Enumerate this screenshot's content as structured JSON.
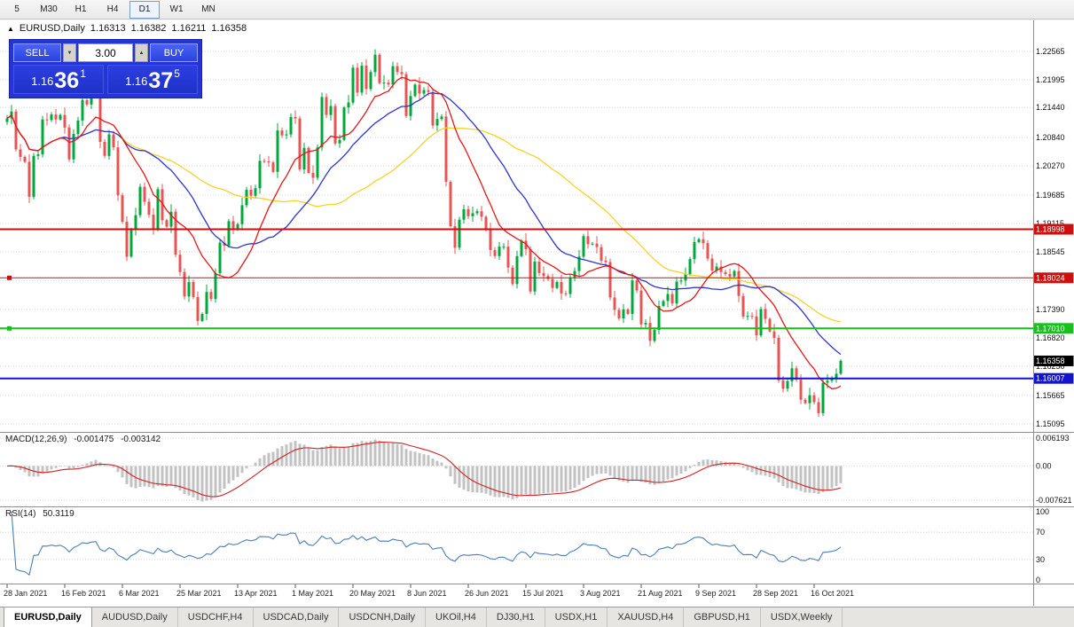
{
  "toolbar": {
    "timeframes": [
      {
        "label": "5",
        "active": false
      },
      {
        "label": "M30",
        "active": false
      },
      {
        "label": "H1",
        "active": false
      },
      {
        "label": "H4",
        "active": false
      },
      {
        "label": "D1",
        "active": true
      },
      {
        "label": "W1",
        "active": false
      },
      {
        "label": "MN",
        "active": false
      }
    ]
  },
  "chart_header": {
    "collapse_icon": "▲",
    "symbol": "EURUSD,Daily",
    "open": "1.16313",
    "high": "1.16382",
    "low": "1.16211",
    "close": "1.16358"
  },
  "one_click": {
    "sell_label": "SELL",
    "buy_label": "BUY",
    "volume": "3.00",
    "down_icon": "▼",
    "up_icon": "▲",
    "bid_small": "1.16",
    "bid_big": "36",
    "bid_sup": "1",
    "ask_small": "1.16",
    "ask_big": "37",
    "ask_sup": "5"
  },
  "indicators": {
    "macd_label": "MACD(12,26,9)",
    "macd_value1": "-0.001475",
    "macd_value2": "-0.003142",
    "rsi_label": "RSI(14)",
    "rsi_value": "50.3119"
  },
  "tabs": [
    {
      "label": "EURUSD,Daily",
      "active": true
    },
    {
      "label": "AUDUSD,Daily",
      "active": false
    },
    {
      "label": "USDCHF,H4",
      "active": false
    },
    {
      "label": "USDCAD,Daily",
      "active": false
    },
    {
      "label": "USDCNH,Daily",
      "active": false
    },
    {
      "label": "UKOil,H4",
      "active": false
    },
    {
      "label": "DJ30,H1",
      "active": false
    },
    {
      "label": "USDX,H1",
      "active": false
    },
    {
      "label": "XAUUSD,H4",
      "active": false
    },
    {
      "label": "GBPUSD,H1",
      "active": false
    },
    {
      "label": "USDX,Weekly",
      "active": false
    }
  ],
  "chart_data": {
    "type": "candlestick",
    "symbol": "EURUSD",
    "timeframe": "Daily",
    "up_color": "#00a83c",
    "down_color": "#e65454",
    "first_open": 1.2115,
    "wick_pattern": [
      0.0012,
      0.0022,
      0.0008,
      0.0018,
      0.0005,
      0.0025,
      0.001,
      0.0015
    ],
    "closes": [
      1.2122,
      1.2136,
      1.206,
      1.2045,
      1.2035,
      1.1965,
      1.2047,
      1.205,
      1.212,
      1.2119,
      1.213,
      1.212,
      1.2129,
      1.2104,
      1.204,
      1.2091,
      1.2118,
      1.2159,
      1.215,
      1.2168,
      1.2175,
      1.2075,
      1.2047,
      1.209,
      1.2064,
      1.1968,
      1.1915,
      1.1845,
      1.19,
      1.1928,
      1.1985,
      1.1955,
      1.1929,
      1.19,
      1.198,
      1.1918,
      1.1905,
      1.1935,
      1.1849,
      1.1814,
      1.1765,
      1.1794,
      1.1764,
      1.1716,
      1.173,
      1.1774,
      1.176,
      1.1812,
      1.1873,
      1.1867,
      1.1916,
      1.1899,
      1.191,
      1.1948,
      1.1979,
      1.1967,
      1.1982,
      1.2037,
      1.2036,
      1.2034,
      1.2015,
      1.2098,
      1.2088,
      1.209,
      1.2125,
      1.2122,
      1.202,
      1.2063,
      1.2013,
      1.2003,
      1.2064,
      1.2165,
      1.2129,
      1.2147,
      1.2072,
      1.2079,
      1.2144,
      1.2154,
      1.2224,
      1.2174,
      1.2228,
      1.2181,
      1.2215,
      1.225,
      1.2193,
      1.2194,
      1.219,
      1.2227,
      1.2215,
      1.2211,
      1.2127,
      1.2167,
      1.219,
      1.2172,
      1.2179,
      1.2175,
      1.2108,
      1.2121,
      1.2126,
      1.1995,
      1.1906,
      1.1863,
      1.1919,
      1.194,
      1.1926,
      1.1932,
      1.1936,
      1.1925,
      1.1898,
      1.1858,
      1.1846,
      1.1865,
      1.1865,
      1.1823,
      1.179,
      1.1846,
      1.1877,
      1.186,
      1.1775,
      1.1835,
      1.1812,
      1.1806,
      1.18,
      1.1782,
      1.1794,
      1.1771,
      1.177,
      1.1802,
      1.1816,
      1.1845,
      1.1886,
      1.187,
      1.1871,
      1.1864,
      1.1837,
      1.1834,
      1.1763,
      1.1738,
      1.1721,
      1.1739,
      1.173,
      1.1797,
      1.1777,
      1.1709,
      1.1712,
      1.1676,
      1.1698,
      1.1746,
      1.1756,
      1.177,
      1.1751,
      1.1795,
      1.1797,
      1.181,
      1.184,
      1.1874,
      1.188,
      1.1872,
      1.1841,
      1.1817,
      1.1825,
      1.1814,
      1.181,
      1.1805,
      1.1816,
      1.1766,
      1.1725,
      1.1726,
      1.1725,
      1.1687,
      1.174,
      1.172,
      1.1695,
      1.1682,
      1.1597,
      1.158,
      1.1595,
      1.1621,
      1.1598,
      1.1558,
      1.1551,
      1.1567,
      1.1553,
      1.1531,
      1.1592,
      1.1596,
      1.1601,
      1.161,
      1.1636
    ],
    "moving_averages": [
      {
        "period": 13,
        "color": "#e81717"
      },
      {
        "period": 26,
        "color": "#2c35cc"
      },
      {
        "period": 50,
        "color": "#f5d327"
      }
    ],
    "dates": [
      "28 Jan 2021",
      "16 Feb 2021",
      "6 Mar 2021",
      "25 Mar 2021",
      "13 Apr 2021",
      "1 May 2021",
      "20 May 2021",
      "8 Jun 2021",
      "26 Jun 2021",
      "15 Jul 2021",
      "3 Aug 2021",
      "21 Aug 2021",
      "9 Sep 2021",
      "28 Sep 2021",
      "16 Oct 2021"
    ],
    "bars_per_label": 13,
    "price_axis": {
      "ticks": [
        {
          "v": 1.22565,
          "label": "1.22565"
        },
        {
          "v": 1.21995,
          "label": "1.21995"
        },
        {
          "v": 1.2144,
          "label": "1.21440"
        },
        {
          "v": 1.2084,
          "label": "1.20840"
        },
        {
          "v": 1.2027,
          "label": "1.20270"
        },
        {
          "v": 1.19685,
          "label": "1.19685"
        },
        {
          "v": 1.19115,
          "label": "1.19115"
        },
        {
          "v": 1.18545,
          "label": "1.18545"
        },
        {
          "v": 1.1797,
          "label": ""
        },
        {
          "v": 1.1739,
          "label": "1.17390"
        },
        {
          "v": 1.1682,
          "label": "1.16820"
        },
        {
          "v": 1.1625,
          "label": "1.16250"
        },
        {
          "v": 1.15665,
          "label": "1.15665"
        },
        {
          "v": 1.15095,
          "label": "1.15095"
        }
      ]
    },
    "levels": [
      {
        "price": 1.18998,
        "label": "1.18998",
        "color": "#cf0e0e",
        "width": 2,
        "handle": false
      },
      {
        "price": 1.18024,
        "label": "1.18024",
        "color": "#cf0e0e",
        "width": 1,
        "handle": true
      },
      {
        "price": 1.1701,
        "label": "1.17010",
        "color": "#16c11b",
        "width": 2,
        "handle": true
      },
      {
        "price": 1.16007,
        "label": "1.16007",
        "color": "#1414cc",
        "width": 2,
        "handle": false
      }
    ],
    "last_price": {
      "value": 1.16358,
      "label": "1.16358",
      "color": "#000000"
    },
    "macd": {
      "fast": 12,
      "slow": 26,
      "signal": 9,
      "value": -0.001475,
      "signal_value": -0.003142,
      "hist_color": "#c2c2c2",
      "line_color": "#d42020",
      "axis_ticks": [
        {
          "v": 0.006193,
          "label": "0.006193"
        },
        {
          "v": 0,
          "label": "0.00"
        },
        {
          "v": -0.007621,
          "label": "-0.007621"
        }
      ]
    },
    "rsi": {
      "period": 14,
      "value": 50.3119,
      "color": "#4a7ebb",
      "axis_ticks": [
        {
          "v": 100,
          "label": "100",
          "dotted": false
        },
        {
          "v": 70,
          "label": "70",
          "dotted": true
        },
        {
          "v": 30,
          "label": "30",
          "dotted": true
        },
        {
          "v": 0,
          "label": "0",
          "dotted": false
        }
      ]
    }
  }
}
